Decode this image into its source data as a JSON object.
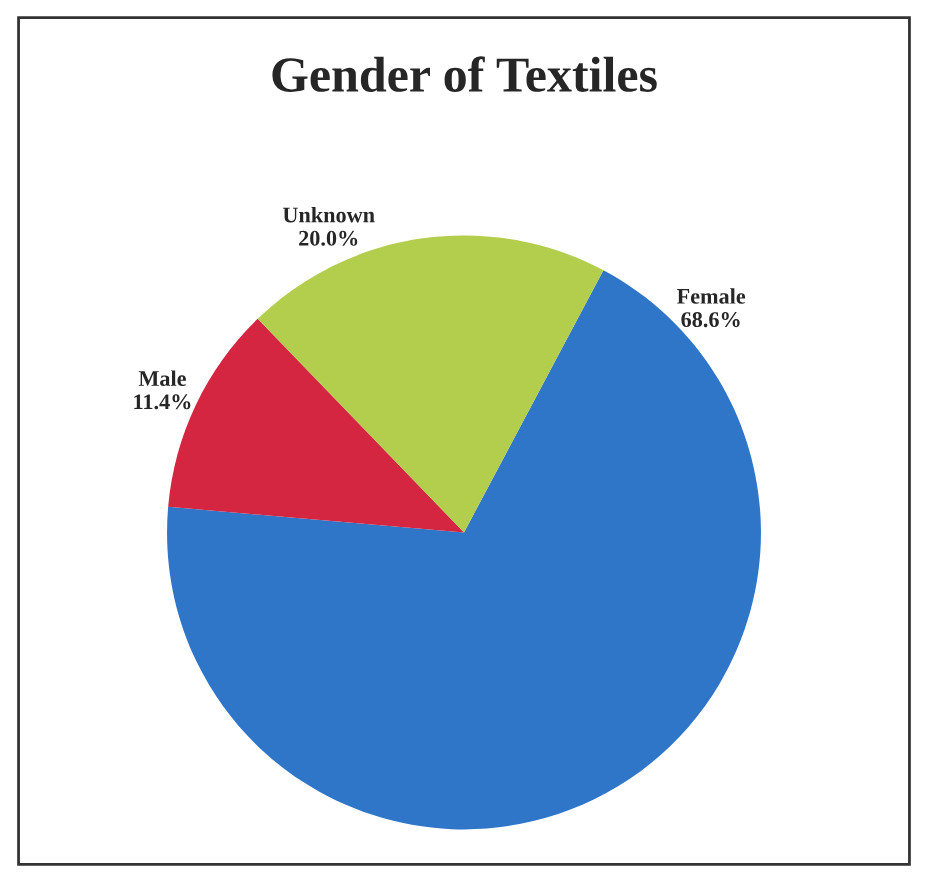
{
  "chart_data": {
    "type": "pie",
    "title": "Gender of Textiles",
    "categories": [
      "Female",
      "Male",
      "Unknown"
    ],
    "values": [
      68.6,
      11.4,
      20.0
    ],
    "value_labels": [
      "68.6%",
      "11.4%",
      "20.0%"
    ],
    "colors": [
      "#2f76c9",
      "#d42541",
      "#b3cd4c"
    ],
    "legend": false
  }
}
